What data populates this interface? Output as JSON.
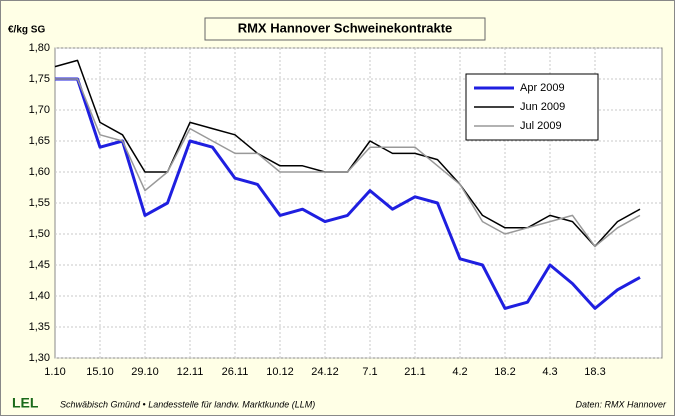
{
  "chart_data": {
    "type": "line",
    "title": "RMX Hannover Schweinekontrakte",
    "y_label": "€/kg SG",
    "categories": [
      "1.10",
      null,
      "15.10",
      null,
      "29.10",
      null,
      "12.11",
      null,
      "26.11",
      null,
      "10.12",
      null,
      "24.12",
      null,
      "7.1",
      null,
      "21.1",
      null,
      "4.2",
      null,
      "18.2",
      null,
      "4.3",
      null,
      "18.3",
      null,
      null,
      null
    ],
    "series": [
      {
        "name": "Apr 2009",
        "color": "#1f1fe0",
        "values": [
          1.75,
          1.75,
          1.64,
          1.65,
          1.53,
          1.55,
          1.65,
          1.64,
          1.59,
          1.58,
          1.53,
          1.54,
          1.52,
          1.53,
          1.57,
          1.54,
          1.56,
          1.55,
          1.46,
          1.45,
          1.38,
          1.39,
          1.45,
          1.42,
          1.38,
          1.41,
          1.43,
          null
        ]
      },
      {
        "name": "Jun 2009",
        "color": "#000000",
        "values": [
          1.77,
          1.78,
          1.68,
          1.66,
          1.6,
          1.6,
          1.68,
          1.67,
          1.66,
          1.63,
          1.61,
          1.61,
          1.6,
          1.6,
          1.65,
          1.63,
          1.63,
          1.62,
          1.58,
          1.53,
          1.51,
          1.51,
          1.53,
          1.52,
          1.48,
          1.52,
          1.54,
          null
        ]
      },
      {
        "name": "Jul 2009",
        "color": "#999999",
        "values": [
          1.75,
          1.75,
          1.66,
          1.65,
          1.57,
          1.6,
          1.67,
          1.65,
          1.63,
          1.63,
          1.6,
          1.6,
          1.6,
          1.6,
          1.64,
          1.64,
          1.64,
          1.61,
          1.58,
          1.52,
          1.5,
          1.51,
          1.52,
          1.53,
          1.48,
          1.51,
          1.53,
          null
        ]
      }
    ],
    "ylim": [
      1.3,
      1.8
    ],
    "yticks": [
      {
        "value": 1.3,
        "label": "1,30"
      },
      {
        "value": 1.35,
        "label": "1,35"
      },
      {
        "value": 1.4,
        "label": "1,40"
      },
      {
        "value": 1.45,
        "label": "1,45"
      },
      {
        "value": 1.5,
        "label": "1,50"
      },
      {
        "value": 1.55,
        "label": "1,55"
      },
      {
        "value": 1.6,
        "label": "1,60"
      },
      {
        "value": 1.65,
        "label": "1,65"
      },
      {
        "value": 1.7,
        "label": "1,70"
      },
      {
        "value": 1.75,
        "label": "1,75"
      },
      {
        "value": 1.8,
        "label": "1,80"
      }
    ],
    "grid": true,
    "legend": "upper right"
  },
  "footer": {
    "logo": "LEL",
    "source": "Schwäbisch Gmünd • Landesstelle für landw. Marktkunde (LLM)",
    "credit": "Daten: RMX Hannover"
  }
}
